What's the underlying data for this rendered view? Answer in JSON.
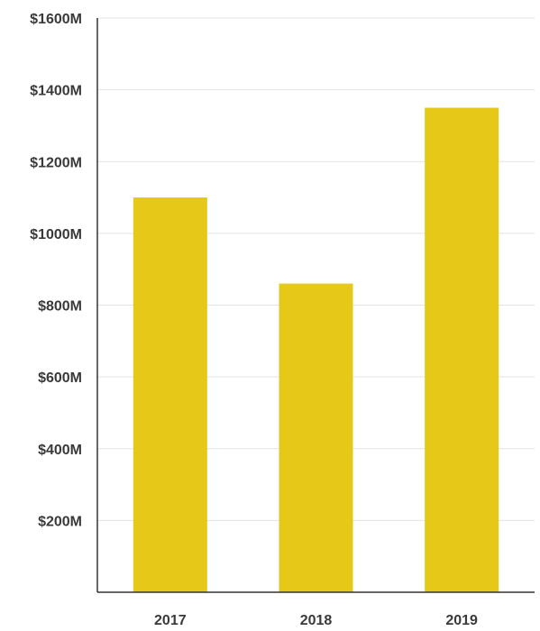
{
  "chart_data": {
    "type": "bar",
    "categories": [
      "2017",
      "2018",
      "2019"
    ],
    "values": [
      1100,
      860,
      1350
    ],
    "units": "M",
    "ylim": [
      0,
      1600
    ],
    "ytick_values": [
      200,
      400,
      600,
      800,
      1000,
      1200,
      1400,
      1600
    ],
    "ytick_labels": [
      "$200M",
      "$400M",
      "$600M",
      "$800M",
      "$1000M",
      "$1200M",
      "$1400M",
      "$1600M"
    ],
    "title": "",
    "xlabel": "",
    "ylabel": "",
    "grid": true,
    "legend": "none",
    "bar_color": "#e5c818"
  }
}
